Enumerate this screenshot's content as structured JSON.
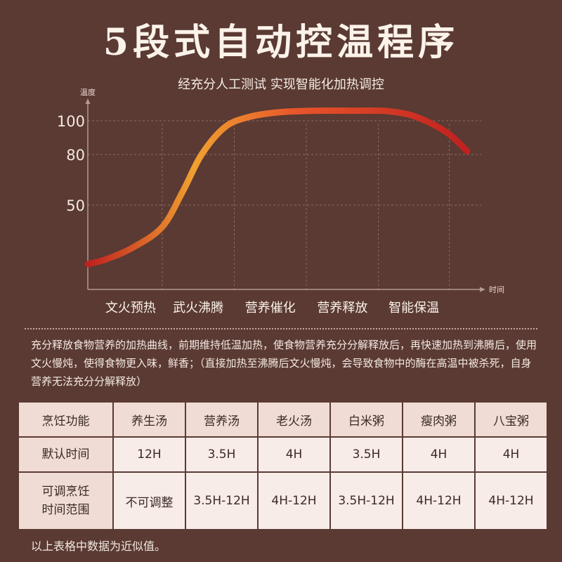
{
  "title": "5段式自动控温程序",
  "subtitle": "经充分人工测试 实现智能化加热调控",
  "chart_data": {
    "type": "line",
    "ylabel": "温度",
    "xlabel": "时间",
    "y_ticks": [
      100,
      80,
      50
    ],
    "ylim": [
      0,
      115
    ],
    "xlim": [
      0,
      100
    ],
    "stages": [
      "文火预热",
      "武火沸腾",
      "营养催化",
      "营养释放",
      "智能保温"
    ],
    "stage_dividers": [
      19.6,
      38.6,
      57.6,
      76.6,
      95.3
    ],
    "series": [
      {
        "x": [
          0,
          5,
          12,
          19.6,
          25,
          30,
          36,
          42,
          50,
          60,
          70,
          76.6,
          80,
          85,
          90,
          95.3,
          100
        ],
        "y": [
          15,
          18,
          25,
          37,
          58,
          80,
          96,
          102,
          105,
          106,
          106,
          106,
          105.5,
          103.5,
          99,
          92,
          82
        ]
      }
    ],
    "colors": {
      "start": "#c0201f",
      "mid": "#f0a030",
      "end": "#c0201f"
    }
  },
  "description": "充分释放食物营养的加热曲线，前期维持低温加热，使食物营养充分分解释放后，再快速加热到沸腾后，使用文火慢炖，使得食物更入味，鲜香；（直接加热至沸腾后文火慢炖，会导致食物中的酶在高温中被杀死，自身营养无法充分分解释放）",
  "table": {
    "headers": [
      "烹饪功能",
      "养生汤",
      "营养汤",
      "老火汤",
      "白米粥",
      "瘦肉粥",
      "八宝粥"
    ],
    "row1": [
      "默认时间",
      "12H",
      "3.5H",
      "4H",
      "3.5H",
      "4H",
      "4H"
    ],
    "row2_label_line1": "可调烹饪",
    "row2_label_line2": "时间范围",
    "row2": [
      "不可调整",
      "3.5H-12H",
      "4H-12H",
      "3.5H-12H",
      "4H-12H",
      "4H-12H"
    ]
  },
  "footnote": "以上表格中数据为近似值。"
}
